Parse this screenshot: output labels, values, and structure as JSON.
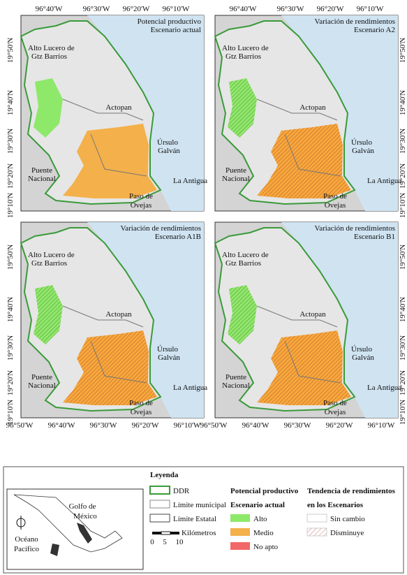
{
  "lon_labels_top": [
    "96°40'W",
    "96°30'W",
    "96°20'W",
    "96°10'W"
  ],
  "lon_labels_bottom": [
    "96°50'W",
    "96°40'W",
    "96°30'W",
    "96°20'W",
    "96°10'W"
  ],
  "lat_labels": [
    "19°50'N",
    "19°40'N",
    "19°30'N",
    "19°20'N",
    "19°10'N"
  ],
  "panels": [
    {
      "title_lines": [
        "Potencial productivo",
        "Escenario actual"
      ]
    },
    {
      "title_lines": [
        "Variación de rendimientos",
        "Escenario A2"
      ]
    },
    {
      "title_lines": [
        "Variación de rendimientos",
        "Escenario A1B"
      ]
    },
    {
      "title_lines": [
        "Variación de rendimientos",
        "Escenario B1"
      ]
    }
  ],
  "place_labels": [
    "Alto Lucero de",
    "Gtz Barrios",
    "Actopan",
    "Úrsulo",
    "Galván",
    "Puente",
    "Nacional",
    "La Antigua",
    "Paso de",
    "Ovejas"
  ],
  "inset": {
    "labels": [
      "Golfo de",
      "México",
      "Océano",
      "Pacífico"
    ]
  },
  "legend": {
    "title": "Leyenda",
    "boundaries": [
      "DDR",
      "Límite municipal",
      "Límite Estatal"
    ],
    "potential": {
      "title_lines": [
        "Potencial productivo",
        "Escenario actual"
      ],
      "items": [
        "Alto",
        "Medio",
        "No apto"
      ]
    },
    "trend": {
      "title_lines": [
        "Tendencia de rendimientos",
        "en los Escenarios"
      ],
      "items": [
        "Sin cambio",
        "Disminuye"
      ]
    },
    "scale": {
      "ticks": [
        "0",
        "5",
        "10"
      ],
      "unit": "Kilómetros"
    }
  }
}
